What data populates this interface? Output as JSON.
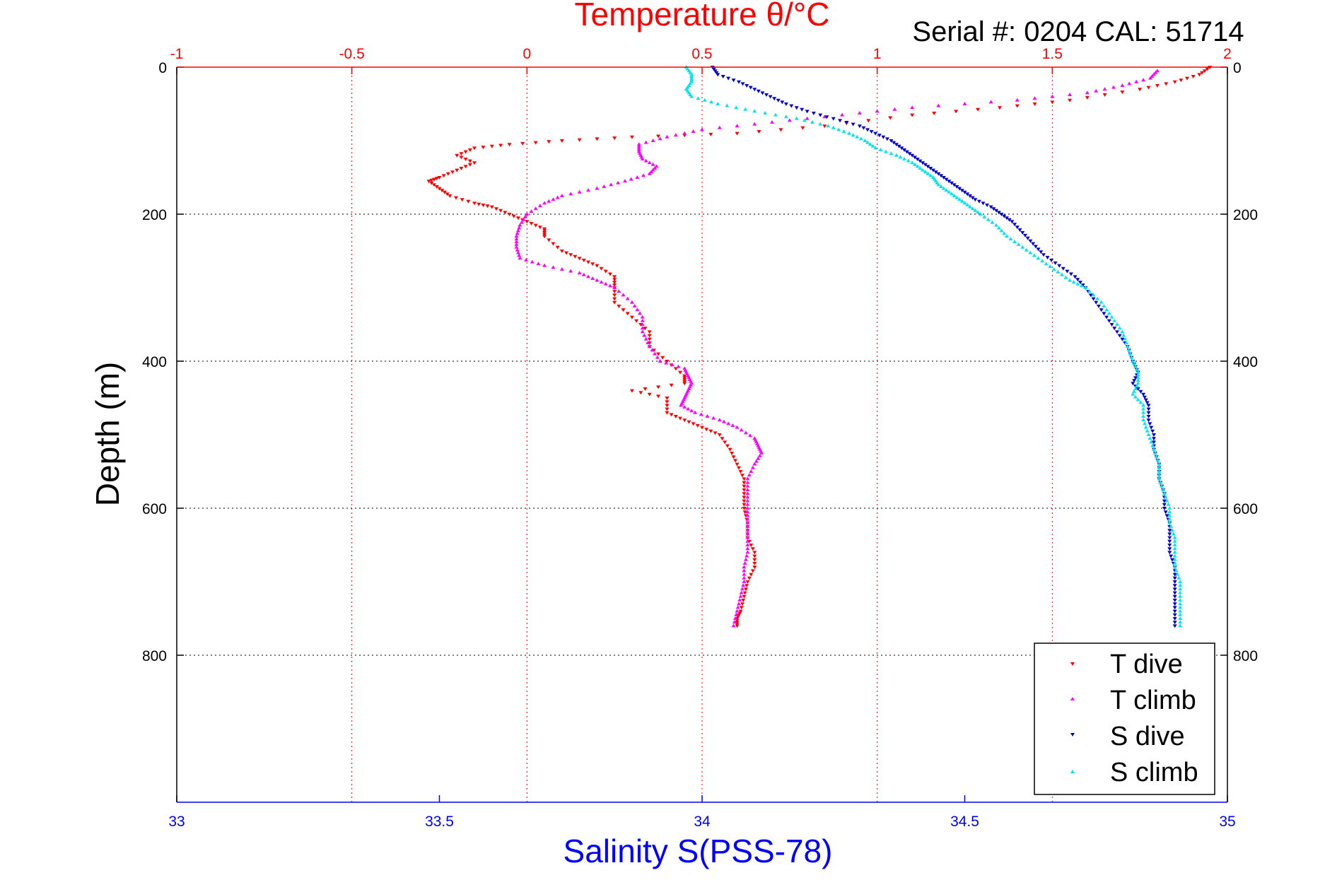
{
  "chart_data": {
    "type": "scatter",
    "title": "Temperature θ/°C",
    "subtitle": "Serial #: 0204  CAL: 51714",
    "ylabel": "Depth (m)",
    "xlabel_bottom": "Salinity S(PSS-78)",
    "y_reversed": true,
    "ylim": [
      0,
      1000
    ],
    "xlim_top": [
      -1,
      2
    ],
    "xlim_bottom": [
      33,
      35
    ],
    "yticks": [
      0,
      200,
      400,
      600,
      800
    ],
    "xticks_top": [
      "-1",
      "-0.5",
      "0",
      "0.5",
      "1",
      "1.5",
      "2"
    ],
    "xticks_bottom": [
      "33",
      "33.5",
      "34",
      "34.5",
      "35"
    ],
    "grid": true,
    "legend_position": "bottom-right",
    "colors": {
      "top_axis": "#ff0000",
      "bottom_axis": "#0000ff",
      "T_dive": "#ff0000",
      "T_climb": "#ff00ff",
      "S_dive": "#0000cc",
      "S_climb": "#00e5ee"
    },
    "series": [
      {
        "name": "T dive",
        "axis": "top",
        "color": "#ff0000",
        "marker": "triangle-down",
        "points": [
          [
            1.95,
            0
          ],
          [
            1.92,
            10
          ],
          [
            1.85,
            20
          ],
          [
            1.75,
            30
          ],
          [
            1.55,
            45
          ],
          [
            1.35,
            55
          ],
          [
            1.1,
            65
          ],
          [
            0.85,
            80
          ],
          [
            0.6,
            90
          ],
          [
            0.3,
            95
          ],
          [
            0.1,
            100
          ],
          [
            -0.05,
            105
          ],
          [
            -0.15,
            110
          ],
          [
            -0.2,
            120
          ],
          [
            -0.15,
            130
          ],
          [
            -0.2,
            140
          ],
          [
            -0.25,
            150
          ],
          [
            -0.28,
            155
          ],
          [
            -0.25,
            165
          ],
          [
            -0.22,
            175
          ],
          [
            -0.15,
            185
          ],
          [
            -0.1,
            190
          ],
          [
            -0.05,
            200
          ],
          [
            0.0,
            210
          ],
          [
            0.05,
            220
          ],
          [
            0.05,
            230
          ],
          [
            0.1,
            250
          ],
          [
            0.15,
            260
          ],
          [
            0.2,
            270
          ],
          [
            0.25,
            285
          ],
          [
            0.25,
            300
          ],
          [
            0.25,
            320
          ],
          [
            0.3,
            340
          ],
          [
            0.35,
            360
          ],
          [
            0.35,
            380
          ],
          [
            0.4,
            400
          ],
          [
            0.45,
            420
          ],
          [
            0.45,
            430
          ],
          [
            0.3,
            440
          ],
          [
            0.4,
            450
          ],
          [
            0.4,
            470
          ],
          [
            0.45,
            480
          ],
          [
            0.5,
            490
          ],
          [
            0.55,
            500
          ],
          [
            0.58,
            520
          ],
          [
            0.6,
            540
          ],
          [
            0.62,
            560
          ],
          [
            0.62,
            580
          ],
          [
            0.62,
            600
          ],
          [
            0.63,
            620
          ],
          [
            0.63,
            640
          ],
          [
            0.65,
            660
          ],
          [
            0.65,
            680
          ],
          [
            0.63,
            700
          ],
          [
            0.62,
            720
          ],
          [
            0.61,
            740
          ],
          [
            0.6,
            750
          ],
          [
            0.6,
            760
          ]
        ]
      },
      {
        "name": "T climb",
        "axis": "top",
        "color": "#ff00ff",
        "marker": "triangle-up",
        "points": [
          [
            1.8,
            5
          ],
          [
            1.78,
            15
          ],
          [
            1.7,
            25
          ],
          [
            1.6,
            35
          ],
          [
            1.4,
            45
          ],
          [
            1.1,
            55
          ],
          [
            0.9,
            65
          ],
          [
            0.7,
            75
          ],
          [
            0.5,
            85
          ],
          [
            0.4,
            95
          ],
          [
            0.32,
            105
          ],
          [
            0.32,
            115
          ],
          [
            0.33,
            125
          ],
          [
            0.37,
            135
          ],
          [
            0.35,
            145
          ],
          [
            0.28,
            155
          ],
          [
            0.2,
            165
          ],
          [
            0.1,
            175
          ],
          [
            0.05,
            185
          ],
          [
            0.0,
            200
          ],
          [
            -0.02,
            215
          ],
          [
            -0.03,
            230
          ],
          [
            -0.03,
            245
          ],
          [
            -0.02,
            260
          ],
          [
            0.05,
            270
          ],
          [
            0.15,
            280
          ],
          [
            0.2,
            290
          ],
          [
            0.25,
            300
          ],
          [
            0.3,
            320
          ],
          [
            0.33,
            340
          ],
          [
            0.33,
            360
          ],
          [
            0.35,
            380
          ],
          [
            0.38,
            400
          ],
          [
            0.45,
            410
          ],
          [
            0.46,
            420
          ],
          [
            0.47,
            430
          ],
          [
            0.46,
            440
          ],
          [
            0.45,
            450
          ],
          [
            0.44,
            460
          ],
          [
            0.48,
            470
          ],
          [
            0.55,
            480
          ],
          [
            0.6,
            490
          ],
          [
            0.65,
            505
          ],
          [
            0.66,
            515
          ],
          [
            0.67,
            525
          ],
          [
            0.65,
            540
          ],
          [
            0.63,
            560
          ],
          [
            0.63,
            580
          ],
          [
            0.63,
            600
          ],
          [
            0.63,
            620
          ],
          [
            0.63,
            640
          ],
          [
            0.63,
            660
          ],
          [
            0.62,
            680
          ],
          [
            0.62,
            700
          ],
          [
            0.61,
            720
          ],
          [
            0.6,
            740
          ],
          [
            0.59,
            760
          ]
        ]
      },
      {
        "name": "S dive",
        "axis": "bottom",
        "color": "#0000cc",
        "marker": "triangle-down",
        "points": [
          [
            34.02,
            0
          ],
          [
            34.03,
            10
          ],
          [
            34.07,
            20
          ],
          [
            34.1,
            30
          ],
          [
            34.13,
            40
          ],
          [
            34.16,
            50
          ],
          [
            34.2,
            60
          ],
          [
            34.25,
            70
          ],
          [
            34.3,
            80
          ],
          [
            34.33,
            90
          ],
          [
            34.36,
            100
          ],
          [
            34.38,
            110
          ],
          [
            34.4,
            120
          ],
          [
            34.42,
            130
          ],
          [
            34.44,
            140
          ],
          [
            34.46,
            150
          ],
          [
            34.48,
            160
          ],
          [
            34.5,
            170
          ],
          [
            34.52,
            180
          ],
          [
            34.55,
            190
          ],
          [
            34.57,
            200
          ],
          [
            34.59,
            210
          ],
          [
            34.61,
            225
          ],
          [
            34.63,
            240
          ],
          [
            34.65,
            255
          ],
          [
            34.68,
            270
          ],
          [
            34.71,
            285
          ],
          [
            34.73,
            300
          ],
          [
            34.75,
            320
          ],
          [
            34.77,
            340
          ],
          [
            34.79,
            360
          ],
          [
            34.81,
            380
          ],
          [
            34.82,
            400
          ],
          [
            34.83,
            415
          ],
          [
            34.82,
            430
          ],
          [
            34.84,
            445
          ],
          [
            34.85,
            460
          ],
          [
            34.85,
            480
          ],
          [
            34.86,
            500
          ],
          [
            34.86,
            520
          ],
          [
            34.87,
            540
          ],
          [
            34.87,
            560
          ],
          [
            34.88,
            580
          ],
          [
            34.88,
            600
          ],
          [
            34.89,
            620
          ],
          [
            34.89,
            640
          ],
          [
            34.89,
            660
          ],
          [
            34.9,
            680
          ],
          [
            34.9,
            700
          ],
          [
            34.9,
            720
          ],
          [
            34.9,
            740
          ],
          [
            34.9,
            760
          ]
        ]
      },
      {
        "name": "S climb",
        "axis": "bottom",
        "color": "#00e5ee",
        "marker": "triangle-up",
        "points": [
          [
            33.97,
            0
          ],
          [
            33.98,
            10
          ],
          [
            33.98,
            20
          ],
          [
            33.97,
            30
          ],
          [
            33.98,
            40
          ],
          [
            34.03,
            50
          ],
          [
            34.1,
            60
          ],
          [
            34.18,
            70
          ],
          [
            34.24,
            80
          ],
          [
            34.28,
            90
          ],
          [
            34.31,
            100
          ],
          [
            34.33,
            110
          ],
          [
            34.37,
            120
          ],
          [
            34.4,
            130
          ],
          [
            34.42,
            140
          ],
          [
            34.44,
            150
          ],
          [
            34.45,
            160
          ],
          [
            34.47,
            170
          ],
          [
            34.49,
            180
          ],
          [
            34.51,
            190
          ],
          [
            34.53,
            200
          ],
          [
            34.56,
            215
          ],
          [
            34.58,
            230
          ],
          [
            34.61,
            245
          ],
          [
            34.64,
            260
          ],
          [
            34.67,
            275
          ],
          [
            34.7,
            290
          ],
          [
            34.73,
            300
          ],
          [
            34.76,
            320
          ],
          [
            34.78,
            340
          ],
          [
            34.8,
            360
          ],
          [
            34.81,
            380
          ],
          [
            34.82,
            400
          ],
          [
            34.83,
            415
          ],
          [
            34.83,
            430
          ],
          [
            34.82,
            445
          ],
          [
            34.84,
            460
          ],
          [
            34.84,
            480
          ],
          [
            34.85,
            500
          ],
          [
            34.86,
            520
          ],
          [
            34.87,
            540
          ],
          [
            34.87,
            560
          ],
          [
            34.88,
            580
          ],
          [
            34.89,
            600
          ],
          [
            34.89,
            620
          ],
          [
            34.9,
            640
          ],
          [
            34.9,
            660
          ],
          [
            34.9,
            680
          ],
          [
            34.91,
            700
          ],
          [
            34.91,
            720
          ],
          [
            34.91,
            740
          ],
          [
            34.91,
            760
          ]
        ]
      }
    ]
  }
}
